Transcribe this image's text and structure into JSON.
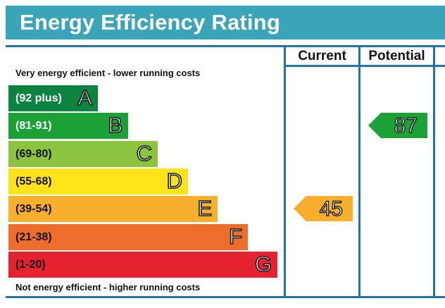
{
  "title": "Energy Efficiency Rating",
  "columns": {
    "current": "Current",
    "potential": "Potential"
  },
  "top_caption": "Very energy efficient - lower running costs",
  "bottom_caption": "Not energy efficient - higher running costs",
  "chart_data": {
    "type": "bar",
    "bands": [
      {
        "letter": "A",
        "range": "(92 plus)",
        "color": "#0c8440",
        "text_color": "#ffffff"
      },
      {
        "letter": "B",
        "range": "(81-91)",
        "color": "#1aa236",
        "text_color": "#ffffff"
      },
      {
        "letter": "C",
        "range": "(69-80)",
        "color": "#8dc43f",
        "text_color": "#111111"
      },
      {
        "letter": "D",
        "range": "(55-68)",
        "color": "#ffe319",
        "text_color": "#111111"
      },
      {
        "letter": "E",
        "range": "(39-54)",
        "color": "#f8af2b",
        "text_color": "#111111"
      },
      {
        "letter": "F",
        "range": "(21-38)",
        "color": "#ef6d2a",
        "text_color": "#111111"
      },
      {
        "letter": "G",
        "range": "(1-20)",
        "color": "#e52230",
        "text_color": "#111111"
      }
    ],
    "current": {
      "value": 45,
      "band": "E",
      "color": "#f8af2b"
    },
    "potential": {
      "value": 87,
      "band": "B",
      "color": "#1aa236"
    }
  }
}
